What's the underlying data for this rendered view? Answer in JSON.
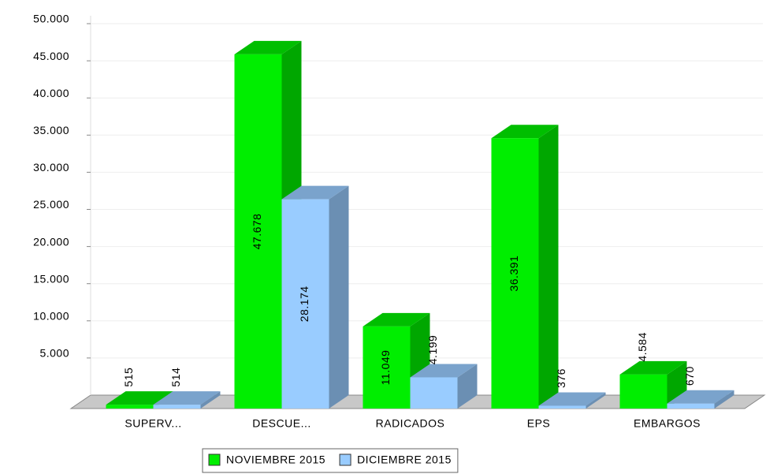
{
  "chart_data": {
    "type": "bar3d",
    "categories": [
      "SUPERV...",
      "DESCUE...",
      "RADICADOS",
      "EPS",
      "EMBARGOS"
    ],
    "series": [
      {
        "name": "NOVIEMBRE 2015",
        "color": "#00ee00",
        "values": [
          515,
          47678,
          11049,
          36391,
          4584
        ],
        "value_labels": [
          "515",
          "47.678",
          "11.049",
          "36.391",
          "4.584"
        ]
      },
      {
        "name": "DICIEMBRE 2015",
        "color": "#99ccff",
        "values": [
          514,
          28174,
          4199,
          376,
          670
        ],
        "value_labels": [
          "514",
          "28.174",
          "4.199",
          "376",
          "670"
        ]
      }
    ],
    "ylim": [
      0,
      50000
    ],
    "yticks": [
      {
        "value": 5000,
        "label": "5.000"
      },
      {
        "value": 10000,
        "label": "10.000"
      },
      {
        "value": 15000,
        "label": "15.000"
      },
      {
        "value": 20000,
        "label": "20.000"
      },
      {
        "value": 25000,
        "label": "25.000"
      },
      {
        "value": 30000,
        "label": "30.000"
      },
      {
        "value": 35000,
        "label": "35.000"
      },
      {
        "value": 40000,
        "label": "40.000"
      },
      {
        "value": 45000,
        "label": "45.000"
      },
      {
        "value": 50000,
        "label": "50.000"
      }
    ],
    "grid": true,
    "legend": "bottom"
  }
}
